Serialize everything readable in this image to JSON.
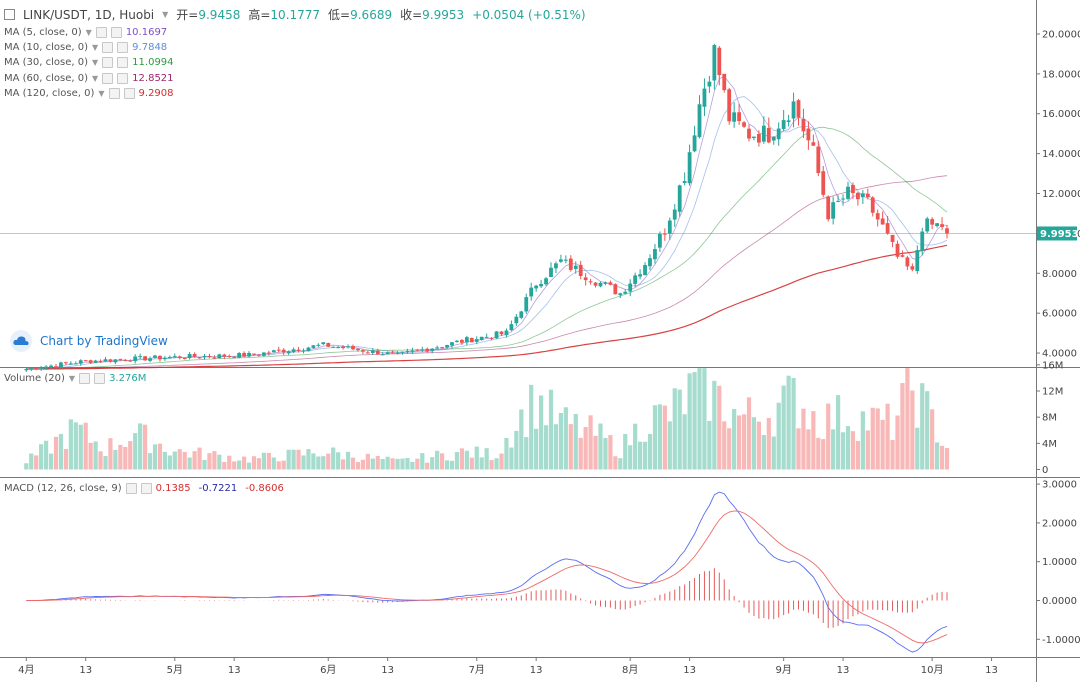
{
  "header": {
    "symbol": "LINK/USDT, 1D, Huobi",
    "open_label": "开=",
    "open": "9.9458",
    "high_label": "高=",
    "high": "10.1777",
    "low_label": "低=",
    "low": "9.6689",
    "close_label": "收=",
    "close": "9.9953",
    "change": "+0.0504 (+0.51%)"
  },
  "legends": {
    "ma5": {
      "label": "MA (5, close, 0)",
      "value": "10.1697",
      "color": "#7b4fc9"
    },
    "ma10": {
      "label": "MA (10, close, 0)",
      "value": "9.7848",
      "color": "#5b8dd9"
    },
    "ma30": {
      "label": "MA (30, close, 0)",
      "value": "11.0994",
      "color": "#2e9b3f"
    },
    "ma60": {
      "label": "MA (60, close, 0)",
      "value": "12.8521",
      "color": "#a0256f"
    },
    "ma120": {
      "label": "MA (120, close, 0)",
      "value": "9.2908",
      "color": "#d32f2f"
    },
    "volume": {
      "label": "Volume (20)",
      "value": "3.276M",
      "color": "#26a69a"
    },
    "macd": {
      "label": "MACD (12, 26, close, 9)",
      "hist": "0.1385",
      "macd": "-0.7221",
      "signal": "-0.8606",
      "hist_color": "#d32f2f",
      "macd_color": "#2a2aa8",
      "signal_color": "#d32f2f"
    }
  },
  "branding": "Chart by TradingView",
  "last_price_tag": "9.9953",
  "colors": {
    "up": "#26a69a",
    "down": "#ef5350",
    "vol_up": "#a5dccd",
    "vol_down": "#f7b8b7",
    "price_line": "#26a69a"
  },
  "chart_data": {
    "type": "candlestick",
    "title": "LINK/USDT, 1D, Huobi",
    "price_axis": {
      "ticks": [
        "4.0000",
        "6.0000",
        "8.0000",
        "10.0000",
        "12.0000",
        "14.0000",
        "16.0000",
        "18.0000",
        "20.0000"
      ],
      "ylim": [
        3.4,
        21.3
      ]
    },
    "volume_axis": {
      "ticks": [
        "0",
        "4M",
        "8M",
        "12M",
        "16M"
      ],
      "ylim": [
        0,
        16
      ]
    },
    "macd_axis": {
      "ticks": [
        "-1.0000",
        "0.0000",
        "1.0000",
        "2.0000",
        "3.0000"
      ],
      "ylim": [
        -1.55,
        3.1
      ]
    },
    "x_ticks": [
      {
        "label": "4月",
        "day": 0
      },
      {
        "label": "13",
        "day": 12
      },
      {
        "label": "5月",
        "day": 30
      },
      {
        "label": "13",
        "day": 42
      },
      {
        "label": "6月",
        "day": 61
      },
      {
        "label": "13",
        "day": 73
      },
      {
        "label": "7月",
        "day": 91
      },
      {
        "label": "13",
        "day": 103
      },
      {
        "label": "8月",
        "day": 122
      },
      {
        "label": "13",
        "day": 134
      },
      {
        "label": "9月",
        "day": 153
      },
      {
        "label": "13",
        "day": 165
      },
      {
        "label": "10月",
        "day": 183
      },
      {
        "label": "13",
        "day": 195
      }
    ],
    "start_day": -4,
    "anchors": [
      [
        0,
        3.2
      ],
      [
        12,
        3.6
      ],
      [
        30,
        3.8
      ],
      [
        45,
        3.9
      ],
      [
        60,
        4.4
      ],
      [
        75,
        3.9
      ],
      [
        90,
        4.7
      ],
      [
        97,
        5.0
      ],
      [
        103,
        7.5
      ],
      [
        108,
        8.6
      ],
      [
        116,
        7.5
      ],
      [
        120,
        7.0
      ],
      [
        125,
        8.5
      ],
      [
        129,
        10.2
      ],
      [
        133,
        13.0
      ],
      [
        136,
        16.5
      ],
      [
        139,
        19.1
      ],
      [
        142,
        15.8
      ],
      [
        146,
        15.0
      ],
      [
        150,
        15.0
      ],
      [
        155,
        16.5
      ],
      [
        159,
        14.0
      ],
      [
        162,
        11.0
      ],
      [
        166,
        12.0
      ],
      [
        170,
        11.5
      ],
      [
        173,
        10.3
      ],
      [
        176,
        8.8
      ],
      [
        179,
        8.0
      ],
      [
        181,
        10.4
      ],
      [
        185,
        10.4
      ],
      [
        186,
        9.9953
      ]
    ],
    "volume_anchors": [
      [
        0,
        1.2
      ],
      [
        10,
        6.2
      ],
      [
        16,
        3.2
      ],
      [
        22,
        5.5
      ],
      [
        30,
        2.8
      ],
      [
        45,
        1.6
      ],
      [
        60,
        2.7
      ],
      [
        75,
        1.2
      ],
      [
        88,
        2.6
      ],
      [
        95,
        2.3
      ],
      [
        98,
        6.0
      ],
      [
        103,
        10.5
      ],
      [
        108,
        7.2
      ],
      [
        115,
        5.5
      ],
      [
        120,
        3.0
      ],
      [
        125,
        7.5
      ],
      [
        130,
        8.5
      ],
      [
        136,
        13.0
      ],
      [
        140,
        10.5
      ],
      [
        144,
        8.0
      ],
      [
        150,
        8.5
      ],
      [
        155,
        11.0
      ],
      [
        160,
        7.5
      ],
      [
        165,
        8.3
      ],
      [
        170,
        7.5
      ],
      [
        175,
        7.0
      ],
      [
        179,
        12.5
      ],
      [
        183,
        7.5
      ],
      [
        186,
        3.3
      ]
    ],
    "ma": {
      "periods": [
        5,
        10,
        30,
        60,
        120
      ],
      "last_values": [
        10.1697,
        9.7848,
        11.0994,
        12.8521,
        9.2908
      ]
    },
    "macd": {
      "params": [
        12,
        26,
        9
      ],
      "last": {
        "histogram": 0.1385,
        "macd": -0.7221,
        "signal": -0.8606
      }
    }
  }
}
